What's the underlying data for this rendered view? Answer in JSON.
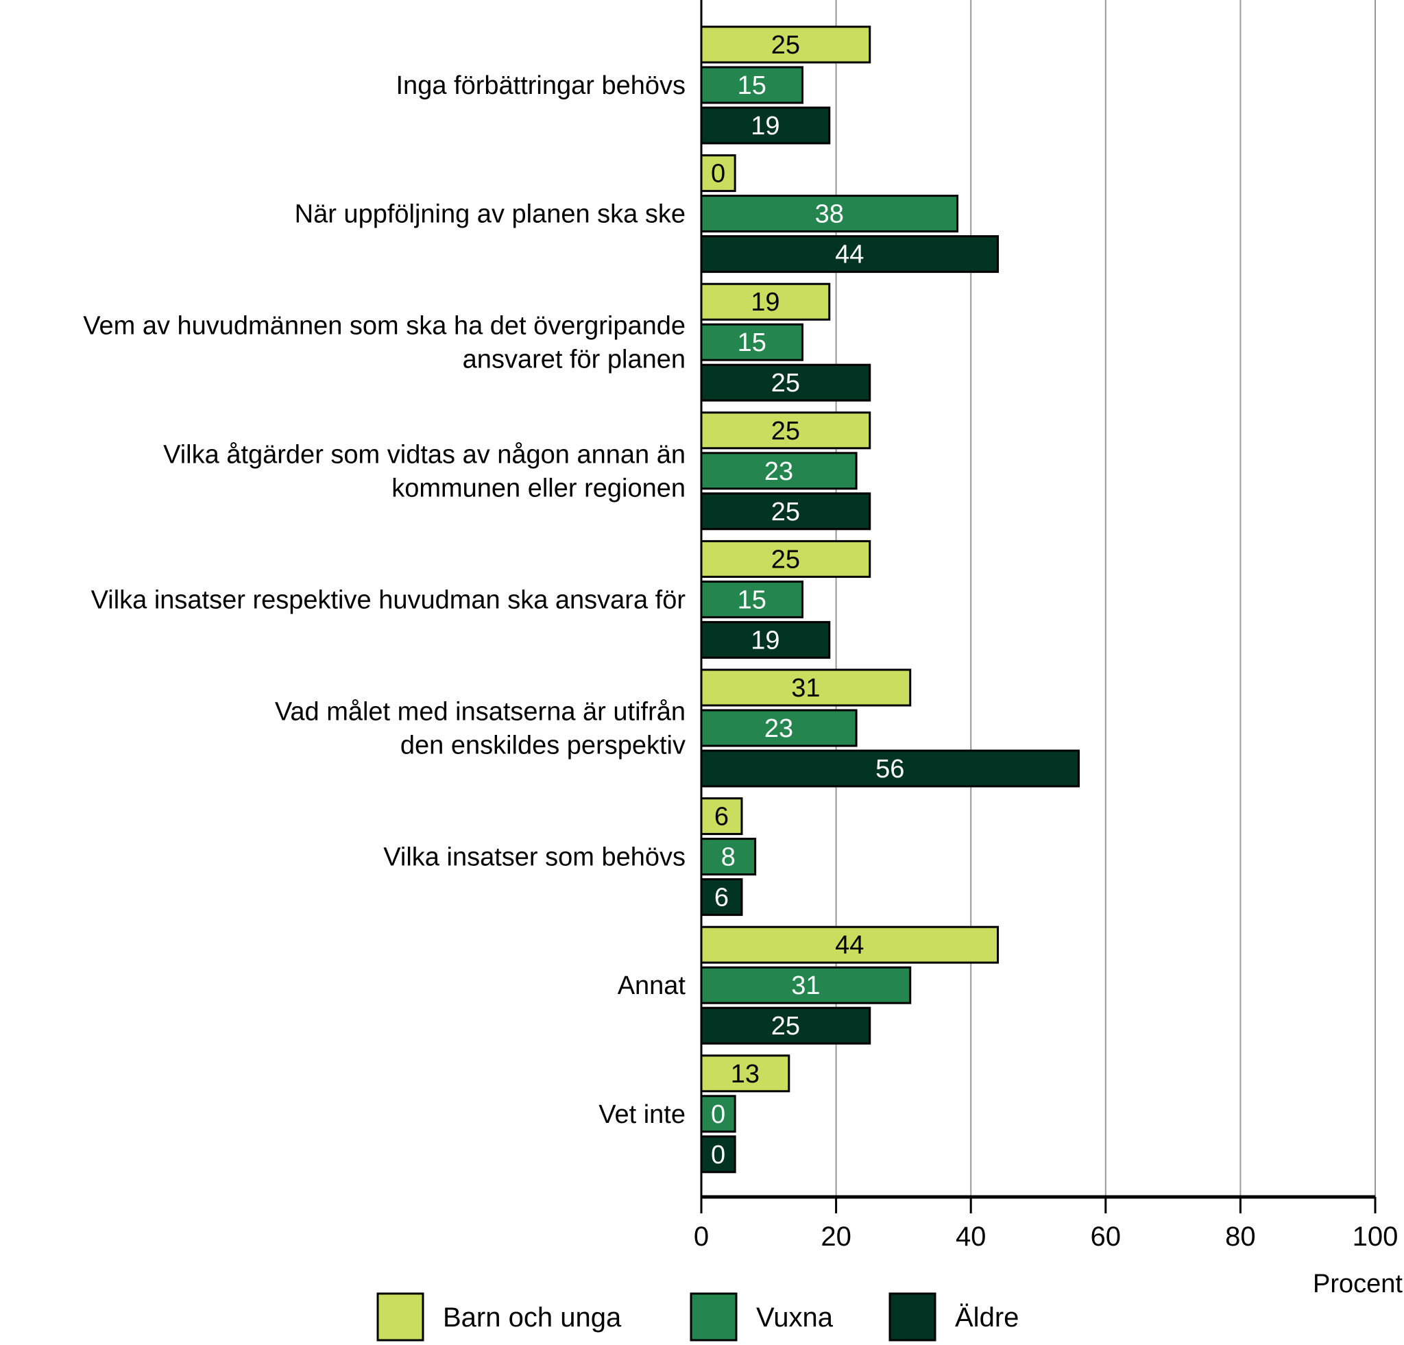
{
  "chart_data": {
    "type": "bar",
    "orientation": "horizontal",
    "categories": [
      [
        "Inga förbättringar behövs"
      ],
      [
        "När uppföljning av planen ska ske"
      ],
      [
        "Vem av huvudmännen som ska ha det övergripande",
        "ansvaret för planen"
      ],
      [
        "Vilka åtgärder som vidtas av någon annan än",
        "kommunen eller regionen"
      ],
      [
        "Vilka insatser respektive huvudman ska ansvara för"
      ],
      [
        "Vad målet med insatserna är utifrån",
        "den enskildes perspektiv"
      ],
      [
        "Vilka insatser som behövs"
      ],
      [
        "Annat"
      ],
      [
        "Vet inte"
      ]
    ],
    "series": [
      {
        "name": "Barn och unga",
        "color": "#cadd5f",
        "label_color": "#000000",
        "values": [
          25,
          0,
          19,
          25,
          25,
          31,
          6,
          44,
          13
        ]
      },
      {
        "name": "Vuxna",
        "color": "#24854f",
        "label_color": "#ffffff",
        "values": [
          15,
          38,
          15,
          23,
          15,
          23,
          8,
          31,
          0
        ]
      },
      {
        "name": "Äldre",
        "color": "#003322",
        "label_color": "#ffffff",
        "values": [
          19,
          44,
          25,
          25,
          19,
          56,
          6,
          25,
          0
        ]
      }
    ],
    "xlabel": "Procent",
    "xlim": [
      0,
      100
    ],
    "xticks": [
      0,
      20,
      40,
      60,
      80,
      100
    ],
    "grid": "vertical",
    "legend": "bottom"
  }
}
